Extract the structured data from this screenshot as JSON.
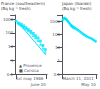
{
  "chart_data": [
    {
      "type": "scatter",
      "title": "France (southeastern)\n(Bq kg⁻¹ fresh)",
      "log": "y",
      "xlim": [
        -1,
        52
      ],
      "xticks": [
        {
          "value": 0,
          "label": "1st may 1986"
        },
        {
          "value": 50,
          "label": "June 20"
        }
      ],
      "ylim": [
        0.1,
        2000
      ],
      "yticks": [
        0.1,
        1,
        10,
        100,
        1000
      ],
      "grid": false,
      "legend": "lower left",
      "series": [
        {
          "name": "▲ Provence",
          "type": "scatter",
          "marker": "triangle",
          "color": "#00e5ff",
          "x": [
            0,
            3,
            6,
            9,
            13,
            17,
            21,
            25,
            29,
            33,
            37,
            41,
            45,
            49
          ],
          "values": [
            800,
            600,
            450,
            350,
            260,
            200,
            140,
            100,
            65,
            45,
            28,
            15,
            8,
            4
          ]
        },
        {
          "name": "■ Corsica",
          "type": "scatter",
          "marker": "square",
          "color": "#00e5ff",
          "x": [
            5,
            9,
            13,
            17,
            21,
            25,
            29,
            33,
            37,
            41,
            45,
            49
          ],
          "values": [
            500,
            420,
            320,
            240,
            170,
            130,
            90,
            60,
            42,
            25,
            12,
            6
          ]
        },
        {
          "type": "line",
          "line_style": "solid",
          "color": "#00e5ff",
          "x": [
            0,
            50
          ],
          "values": [
            900,
            2.5
          ]
        }
      ]
    },
    {
      "type": "scatter",
      "title": "Japan (Ibaraki)\n(Bq kg⁻¹ fresh)",
      "log": "y",
      "xlim": [
        -1,
        60
      ],
      "xticks": [
        {
          "value": 0,
          "label": "March 11, 2011"
        },
        {
          "value": 58,
          "label": "May 10"
        }
      ],
      "ylim": [
        0.1,
        3000
      ],
      "yticks": [
        0.1,
        1,
        10,
        100,
        1000
      ],
      "grid": false,
      "series": [
        {
          "type": "scatter",
          "marker": "diamond",
          "color": "#00e5ff",
          "x": [
            0,
            1,
            2,
            3,
            4,
            5,
            6,
            7,
            8,
            9,
            10,
            11,
            12,
            13,
            14,
            15,
            16,
            17,
            18,
            19,
            20,
            22,
            24,
            26,
            28,
            30,
            32,
            34,
            36,
            38,
            40,
            42,
            44,
            46,
            48,
            50,
            52,
            54,
            56,
            58
          ],
          "values": [
            1200,
            1400,
            1600,
            1800,
            1700,
            1600,
            1500,
            1400,
            1200,
            1050,
            900,
            800,
            700,
            600,
            500,
            450,
            400,
            380,
            360,
            340,
            300,
            280,
            250,
            220,
            190,
            160,
            140,
            120,
            100,
            90,
            80,
            70,
            65,
            60,
            55,
            50,
            45,
            40,
            35,
            30
          ]
        },
        {
          "type": "line",
          "line_style": "solid",
          "color": "#00e5ff",
          "x": [
            0,
            58
          ],
          "values": [
            1800,
            25
          ]
        }
      ]
    }
  ]
}
